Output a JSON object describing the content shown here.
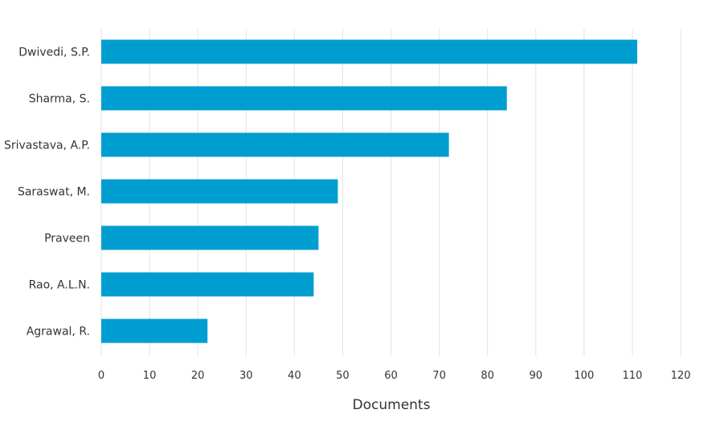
{
  "chart_data": {
    "type": "bar",
    "orientation": "horizontal",
    "categories": [
      "Dwivedi, S.P.",
      "Sharma, S.",
      "Srivastava, A.P.",
      "Saraswat, M.",
      "Praveen",
      "Rao, A.L.N.",
      "Agrawal, R."
    ],
    "values": [
      111,
      84,
      72,
      49,
      45,
      44,
      22
    ],
    "xlabel": "Documents",
    "ylabel": "",
    "xlim": [
      0,
      120
    ],
    "xticks": [
      0,
      10,
      20,
      30,
      40,
      50,
      60,
      70,
      80,
      90,
      100,
      110,
      120
    ],
    "grid": "vertical",
    "bar_color": "#009ed0",
    "grid_color": "#e3e3e3"
  }
}
